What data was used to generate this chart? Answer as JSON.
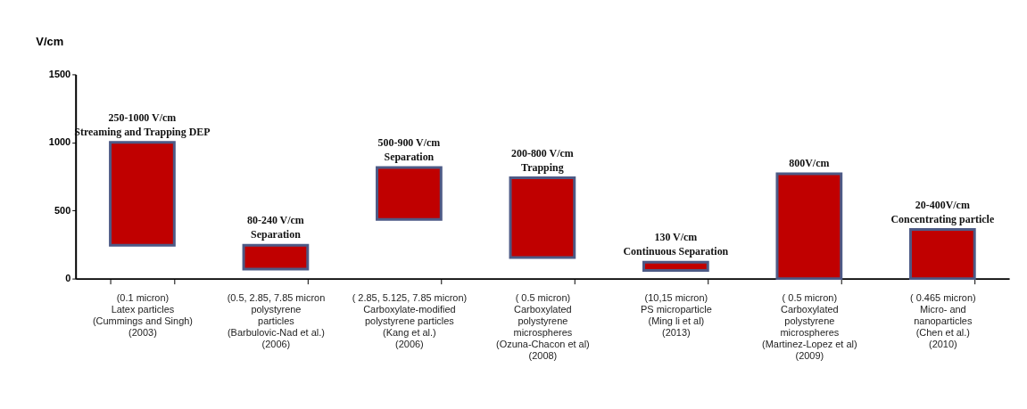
{
  "chart_data": {
    "type": "bar",
    "ylabel": "V/cm",
    "categories": [
      "(0.1 micron)\nLatex particles\n(Cummings and Singh)\n(2003)",
      "(0.5, 2.85, 7.85 micron\npolystyrene\nparticles\n(Barbulovic-Nad et al.)\n(2006)",
      "( 2.85, 5.125, 7.85 micron)\nCarboxylate-modified\npolystyrene particles\n(Kang et al.)\n(2006)",
      "( 0.5 micron)\nCarboxylated\npolystyrene\nmicrospheres\n(Ozuna-Chacon  et al)\n(2008)",
      "(10,15 micron)\nPS microparticle\n(Ming li et al)\n(2013)",
      "( 0.5 micron)\nCarboxylated\npolystyrene\nmicrospheres\n(Martinez-Lopez et al)\n(2009)",
      "( 0.465 micron)\nMicro- and\nnanoparticles\n(Chen et al.)\n(2010)"
    ],
    "values": [
      755,
      175,
      380,
      585,
      60,
      770,
      360
    ],
    "base": [
      245,
      70,
      435,
      155,
      60,
      0,
      0
    ],
    "color": "#c00000",
    "ylim": [
      0,
      1500
    ],
    "yticks": [
      0,
      500,
      1000,
      1500
    ],
    "grid": false,
    "annotations": [
      {
        "text": "250-1000 V/cm\nStreaming and Trapping DEP",
        "x": "(0.1 micron)\nLatex particles\n(Cummings and Singh)\n(2003)",
        "y": 1000
      },
      {
        "text": "80-240 V/cm\nSeparation",
        "x": "(0.5, 2.85, 7.85 micron\npolystyrene\nparticles\n(Barbulovic-Nad et al.)\n(2006)",
        "y": 245
      },
      {
        "text": "500-900 V/cm\nSeparation",
        "x": "( 2.85, 5.125, 7.85 micron)\nCarboxylate-modified\npolystyrene particles\n(Kang et al.)\n(2006)",
        "y": 815
      },
      {
        "text": "200-800 V/cm\nTrapping",
        "x": "( 0.5 micron)\nCarboxylated\npolystyrene\nmicrospheres\n(Ozuna-Chacon  et al)\n(2008)",
        "y": 740
      },
      {
        "text": "130 V/cm\nContinuous Separation",
        "x": "(10,15 micron)\nPS microparticle\n(Ming li et al)\n(2013)",
        "y": 120
      },
      {
        "text": "800V/cm",
        "x": "( 0.5 micron)\nCarboxylated\npolystyrene\nmicrospheres\n(Martinez-Lopez et al)\n(2009)",
        "y": 770
      },
      {
        "text": "20-400V/cm\nConcentrating particle",
        "x": "( 0.465 micron)\nMicro- and\nnanoparticles\n(Chen et al.)\n(2010)",
        "y": 360
      }
    ]
  }
}
